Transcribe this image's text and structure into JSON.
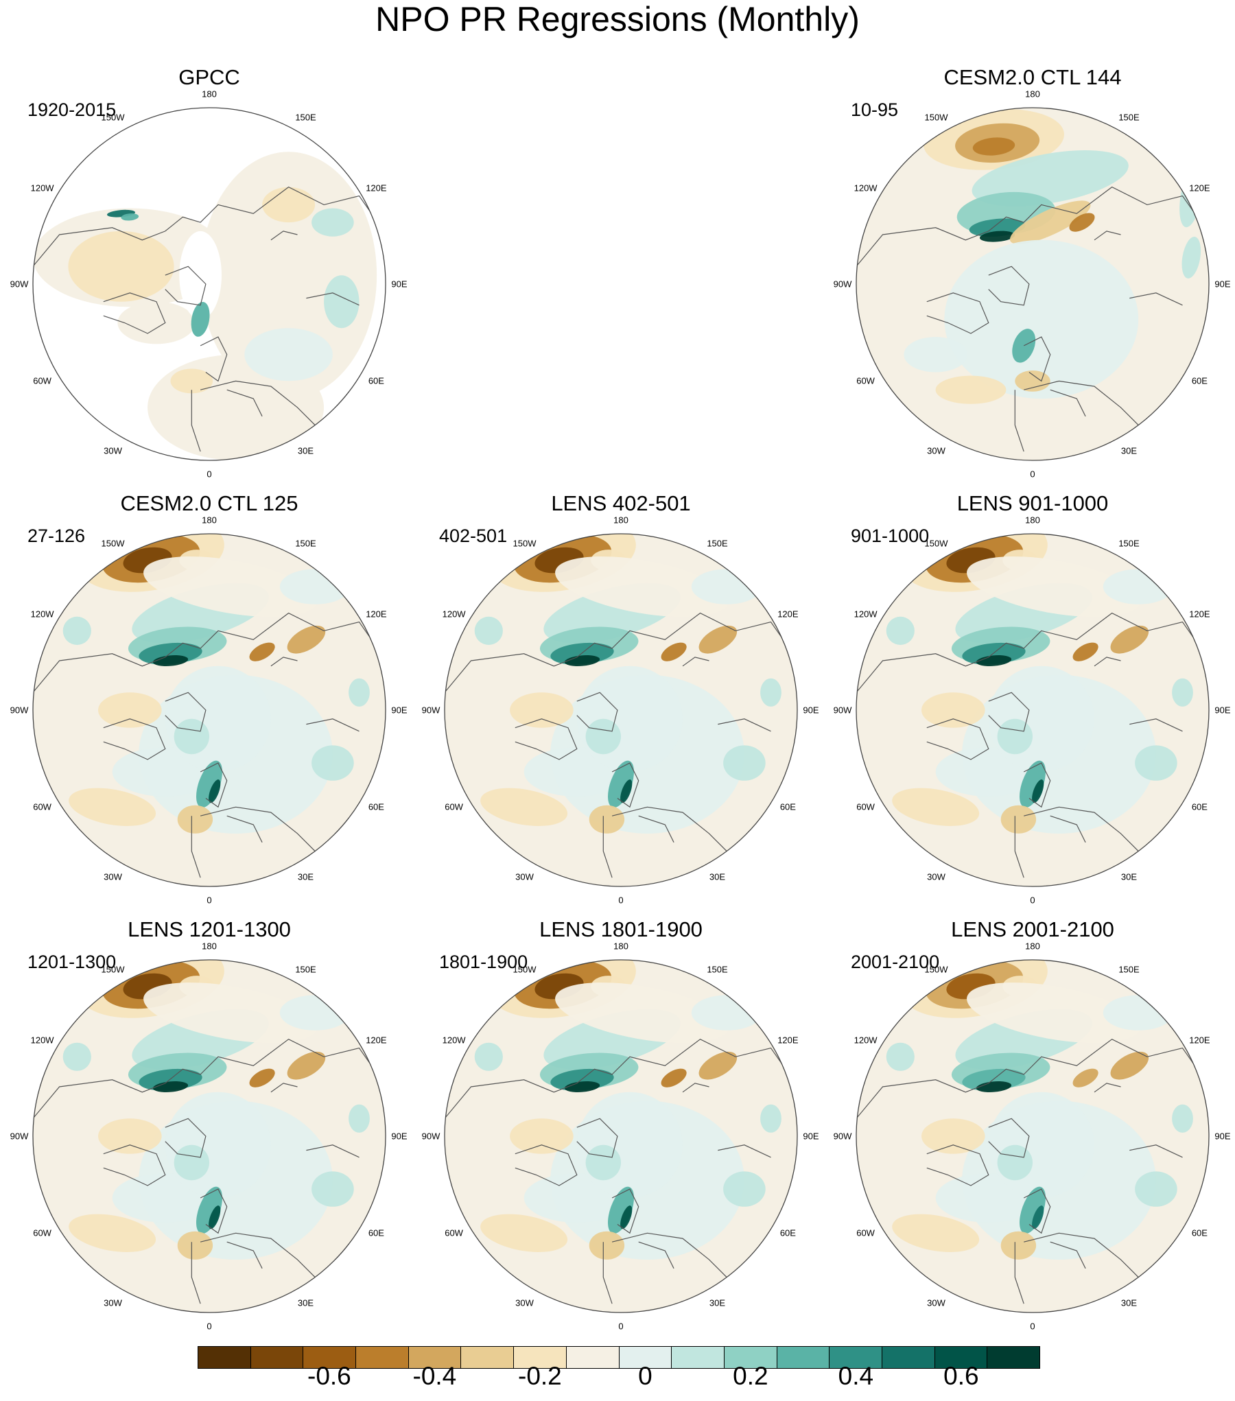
{
  "title": "NPO PR Regressions (Monthly)",
  "lon_labels": [
    "180",
    "150E",
    "120E",
    "90E",
    "60E",
    "30E",
    "0",
    "30W",
    "60W",
    "90W",
    "120W",
    "150W"
  ],
  "panels": [
    {
      "id": "gpcc",
      "title": "GPCC",
      "period": "1920-2015",
      "style": "obs"
    },
    {
      "id": "ctl144",
      "title": "CESM2.0 CTL 144",
      "period": "10-95",
      "style": "weak"
    },
    {
      "id": "ctl125",
      "title": "CESM2.0 CTL 125",
      "period": "27-126",
      "style": "strong"
    },
    {
      "id": "lens402",
      "title": "LENS 402-501",
      "period": "402-501",
      "style": "strong"
    },
    {
      "id": "lens901",
      "title": "LENS 901-1000",
      "period": "901-1000",
      "style": "strong"
    },
    {
      "id": "lens1201",
      "title": "LENS 1201-1300",
      "period": "1201-1300",
      "style": "strong"
    },
    {
      "id": "lens1801",
      "title": "LENS 1801-1900",
      "period": "1801-1900",
      "style": "strong"
    },
    {
      "id": "lens2001",
      "title": "LENS 2001-2100",
      "period": "2001-2100",
      "style": "medium"
    }
  ],
  "colorbar": {
    "colors": [
      "#543005",
      "#7a4609",
      "#9c5d12",
      "#bb7e2c",
      "#d3a75e",
      "#e9cd93",
      "#f6e4bd",
      "#f5f0e4",
      "#e3f0ee",
      "#c1e6df",
      "#8fd1c4",
      "#5ab3a6",
      "#2f9186",
      "#147268",
      "#015448",
      "#003c30"
    ],
    "labels": [
      "-0.6",
      "-0.4",
      "-0.2",
      "0",
      "0.2",
      "0.4",
      "0.6"
    ],
    "label_boundary_index": [
      2,
      4,
      6,
      8,
      10,
      12,
      14
    ]
  }
}
